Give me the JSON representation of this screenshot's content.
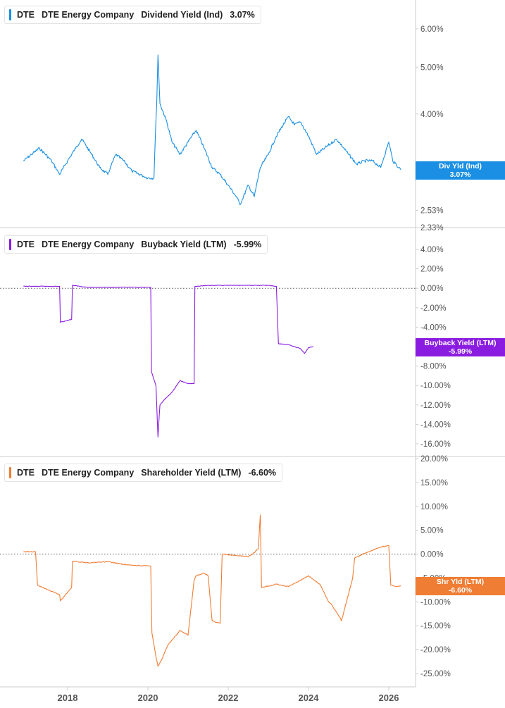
{
  "x_axis": {
    "labels": [
      "2018",
      "2020",
      "2022",
      "2024",
      "2026"
    ]
  },
  "chart_data": [
    {
      "type": "line",
      "ticker": "DTE",
      "company": "DTE Energy Company",
      "metric": "Dividend Yield (Ind)",
      "current_value": "3.07%",
      "color": "#1a8fe3",
      "flag_lines": [
        "Div Yld (Ind)",
        "3.07%"
      ],
      "yticks": [
        "6.00%",
        "5.00%",
        "4.00%",
        "3.00%",
        "2.53%",
        "2.33%"
      ],
      "ytick_values": [
        6.0,
        5.0,
        4.0,
        3.0,
        2.53,
        2.33
      ],
      "ylim": [
        2.33,
        6.3
      ],
      "scale": "log",
      "x": [
        2016.9,
        2017.1,
        2017.3,
        2017.6,
        2017.8,
        2018.0,
        2018.2,
        2018.35,
        2018.6,
        2018.8,
        2019.0,
        2019.2,
        2019.4,
        2019.6,
        2019.8,
        2020.0,
        2020.15,
        2020.22,
        2020.25,
        2020.3,
        2020.45,
        2020.6,
        2020.8,
        2021.0,
        2021.2,
        2021.4,
        2021.6,
        2021.8,
        2022.0,
        2022.2,
        2022.3,
        2022.5,
        2022.65,
        2022.8,
        2023.0,
        2023.2,
        2023.5,
        2023.65,
        2023.8,
        2024.0,
        2024.2,
        2024.4,
        2024.7,
        2025.0,
        2025.2,
        2025.4,
        2025.6,
        2025.8,
        2026.0,
        2026.1,
        2026.25,
        2026.3
      ],
      "values": [
        3.2,
        3.3,
        3.4,
        3.2,
        3.0,
        3.2,
        3.4,
        3.55,
        3.3,
        3.1,
        3.0,
        3.3,
        3.2,
        3.05,
        3.0,
        2.95,
        2.95,
        4.2,
        5.3,
        4.2,
        3.9,
        3.5,
        3.3,
        3.5,
        3.7,
        3.4,
        3.1,
        3.0,
        2.85,
        2.7,
        2.6,
        2.85,
        2.7,
        3.1,
        3.3,
        3.6,
        3.95,
        3.8,
        3.85,
        3.6,
        3.3,
        3.4,
        3.55,
        3.3,
        3.15,
        3.2,
        3.2,
        3.1,
        3.5,
        3.2,
        3.1,
        3.07
      ]
    },
    {
      "type": "line",
      "ticker": "DTE",
      "company": "DTE Energy Company",
      "metric": "Buyback Yield (LTM)",
      "current_value": "-5.99%",
      "color": "#8a1ce0",
      "flag_lines": [
        "Buyback Yield (LTM)",
        "-5.99%"
      ],
      "yticks": [
        "4.00%",
        "2.00%",
        "0.00%",
        "-2.00%",
        "-4.00%",
        "-6.00%",
        "-8.00%",
        "-10.00%",
        "-12.00%",
        "-14.00%",
        "-16.00%"
      ],
      "ytick_values": [
        4,
        2,
        0,
        -2,
        -4,
        -6,
        -8,
        -10,
        -12,
        -14,
        -16
      ],
      "ylim": [
        -16.5,
        5.5
      ],
      "scale": "linear",
      "reference_line": 0,
      "x": [
        2016.9,
        2017.8,
        2017.82,
        2018.0,
        2018.1,
        2018.12,
        2018.5,
        2019.0,
        2019.5,
        2020.07,
        2020.09,
        2020.2,
        2020.25,
        2020.3,
        2020.4,
        2020.6,
        2020.8,
        2021.0,
        2021.15,
        2021.17,
        2021.5,
        2022.0,
        2022.5,
        2023.0,
        2023.2,
        2023.25,
        2023.5,
        2023.8,
        2023.9,
        2024.0,
        2024.12
      ],
      "values": [
        0.2,
        0.2,
        -3.5,
        -3.3,
        -3.2,
        0.3,
        0.1,
        0.1,
        0.1,
        0.1,
        -8.6,
        -10.0,
        -15.3,
        -12.0,
        -11.5,
        -10.7,
        -9.5,
        -9.8,
        -9.8,
        0.2,
        0.3,
        0.3,
        0.3,
        0.3,
        0.2,
        -5.7,
        -5.8,
        -6.2,
        -6.7,
        -6.1,
        -5.99
      ]
    },
    {
      "type": "line",
      "ticker": "DTE",
      "company": "DTE Energy Company",
      "metric": "Shareholder Yield (LTM)",
      "current_value": "-6.60%",
      "color": "#f07d34",
      "flag_lines": [
        "Shr Yld (LTM)",
        "-6.60%"
      ],
      "yticks": [
        "20.00%",
        "15.00%",
        "10.00%",
        "5.00%",
        "0.00%",
        "-5.00%",
        "-10.00%",
        "-15.00%",
        "-20.00%",
        "-25.00%"
      ],
      "ytick_values": [
        20,
        15,
        10,
        5,
        0,
        -5,
        -10,
        -15,
        -20,
        -25
      ],
      "ylim": [
        -27.5,
        21
      ],
      "scale": "linear",
      "reference_line": 0,
      "x": [
        2016.9,
        2017.2,
        2017.25,
        2017.8,
        2017.82,
        2018.0,
        2018.1,
        2018.12,
        2018.5,
        2019.0,
        2019.5,
        2020.07,
        2020.1,
        2020.2,
        2020.25,
        2020.35,
        2020.5,
        2020.8,
        2021.0,
        2021.15,
        2021.2,
        2021.4,
        2021.5,
        2021.6,
        2021.8,
        2021.85,
        2022.2,
        2022.5,
        2022.65,
        2022.75,
        2022.8,
        2022.83,
        2023.2,
        2023.5,
        2023.8,
        2024.0,
        2024.3,
        2024.5,
        2024.55,
        2024.8,
        2024.82,
        2025.1,
        2025.15,
        2025.5,
        2025.8,
        2026.0,
        2026.05,
        2026.2,
        2026.3
      ],
      "values": [
        0.5,
        0.5,
        -6.5,
        -8.5,
        -9.8,
        -8.0,
        -7.0,
        -1.5,
        -1.8,
        -1.6,
        -2.3,
        -2.5,
        -16.5,
        -21.5,
        -23.5,
        -22.0,
        -19.0,
        -16.0,
        -17.0,
        -5.5,
        -4.5,
        -4.0,
        -4.5,
        -14.0,
        -14.5,
        0.0,
        -0.3,
        -0.5,
        0.3,
        1.2,
        8.2,
        -7.0,
        -6.3,
        -6.8,
        -5.5,
        -4.5,
        -6.5,
        -10.0,
        -10.3,
        -13.5,
        -14.0,
        -5.0,
        -0.8,
        0.5,
        1.5,
        1.8,
        -6.5,
        -6.8,
        -6.6
      ]
    }
  ]
}
